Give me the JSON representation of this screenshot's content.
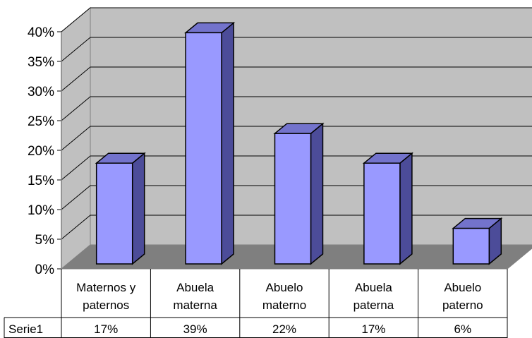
{
  "chart_data": {
    "type": "bar",
    "categories": [
      [
        "Maternos y",
        "paternos"
      ],
      [
        "Abuela",
        "materna"
      ],
      [
        "Abuelo",
        "materno"
      ],
      [
        "Abuela",
        "paterna"
      ],
      [
        "Abuelo",
        "paterno"
      ]
    ],
    "series": [
      {
        "name": "Serie1",
        "values": [
          0.17,
          0.39,
          0.22,
          0.17,
          0.06
        ],
        "labels": [
          "17%",
          "39%",
          "22%",
          "17%",
          "6%"
        ]
      }
    ],
    "y_ticks": [
      "0%",
      "5%",
      "10%",
      "15%",
      "20%",
      "25%",
      "30%",
      "35%",
      "40%"
    ],
    "ylim": [
      0,
      0.4
    ],
    "grid": true,
    "three_d": true,
    "data_table": true,
    "colors": {
      "bar_front": "#9999ff",
      "bar_side": "#4c4c99",
      "bar_top": "#7373cc",
      "wall": "#c0c0c0",
      "floor": "#7f7f7f"
    }
  }
}
